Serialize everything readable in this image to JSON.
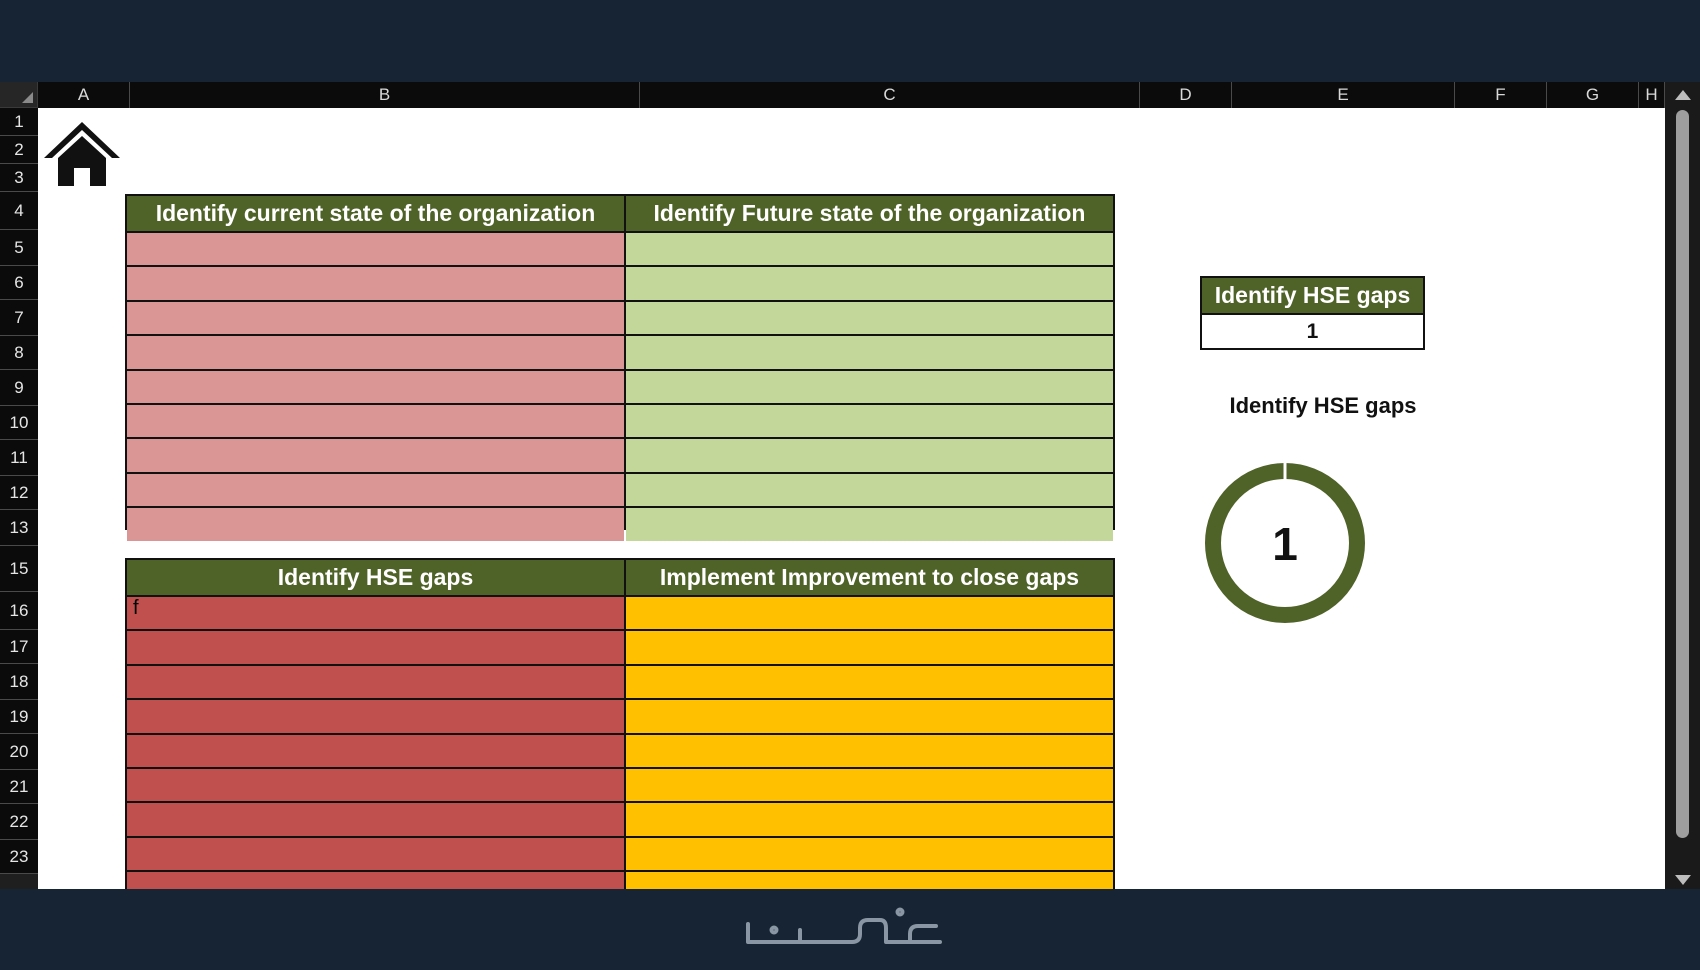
{
  "columns": [
    {
      "label": "A"
    },
    {
      "label": "B"
    },
    {
      "label": "C"
    },
    {
      "label": "D"
    },
    {
      "label": "E"
    },
    {
      "label": "F"
    },
    {
      "label": "G"
    },
    {
      "label": "H"
    }
  ],
  "rows": [
    "1",
    "2",
    "3",
    "4",
    "5",
    "6",
    "7",
    "8",
    "9",
    "10",
    "11",
    "12",
    "13",
    "15",
    "16",
    "17",
    "18",
    "19",
    "20",
    "21",
    "22",
    "23"
  ],
  "top_table": {
    "left_header": "Identify current state of the organization",
    "right_header": "Identify Future state of the organization",
    "row_count": 9
  },
  "bottom_table": {
    "left_header": "Identify HSE gaps",
    "right_header": "Implement Improvement to close gaps",
    "first_cell_value": "f",
    "row_count": 9
  },
  "kpi_box": {
    "header": "Identify HSE gaps",
    "value": "1"
  },
  "donut_chart": {
    "title": "Identify HSE gaps",
    "center_value": "1",
    "fill_fraction": 1.0
  },
  "colors": {
    "header_green": "#4f6228",
    "current_state_pink": "#da9694",
    "future_state_green": "#c4d79b",
    "gaps_red": "#c0504d",
    "improvement_yellow": "#ffc000",
    "donut_ring": "#4f6228"
  },
  "icons": {
    "home": "home-icon",
    "scroll_up": "scroll-up-arrow-icon",
    "scroll_down": "scroll-down-arrow-icon"
  }
}
